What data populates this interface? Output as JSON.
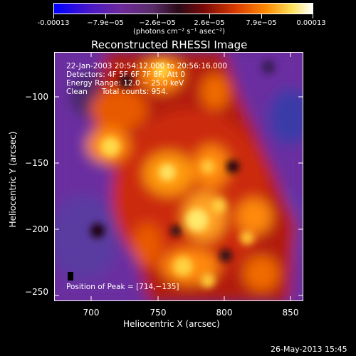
{
  "colorbar": {
    "ticks": [
      "-0.00013",
      "−7.9e−05",
      "−2.6e−05",
      "2.6e−05",
      "7.9e−05",
      "0.00013"
    ],
    "units": "(photons cm⁻² s⁻¹ asec⁻²)"
  },
  "title": "Reconstructed RHESSI Image",
  "annotations": {
    "time": "22-Jan-2003 20:54:12.000 to 20:56:16.000",
    "detectors": "Detectors: 4F 5F 6F 7F 8F, Att 0",
    "energy": "Energy Range: 12.0 − 25.0 keV",
    "clean": "Clean      Total counts: 954.",
    "peak": "Position of Peak = [714,−135]"
  },
  "axes": {
    "xlabel": "Heliocentric X (arcsec)",
    "ylabel": "Heliocentric Y (arcsec)",
    "xticks": [
      "700",
      "750",
      "800",
      "850"
    ],
    "yticks": [
      "−100",
      "−150",
      "−200",
      "−250"
    ]
  },
  "timestamp": "26-May-2013 15:45"
}
